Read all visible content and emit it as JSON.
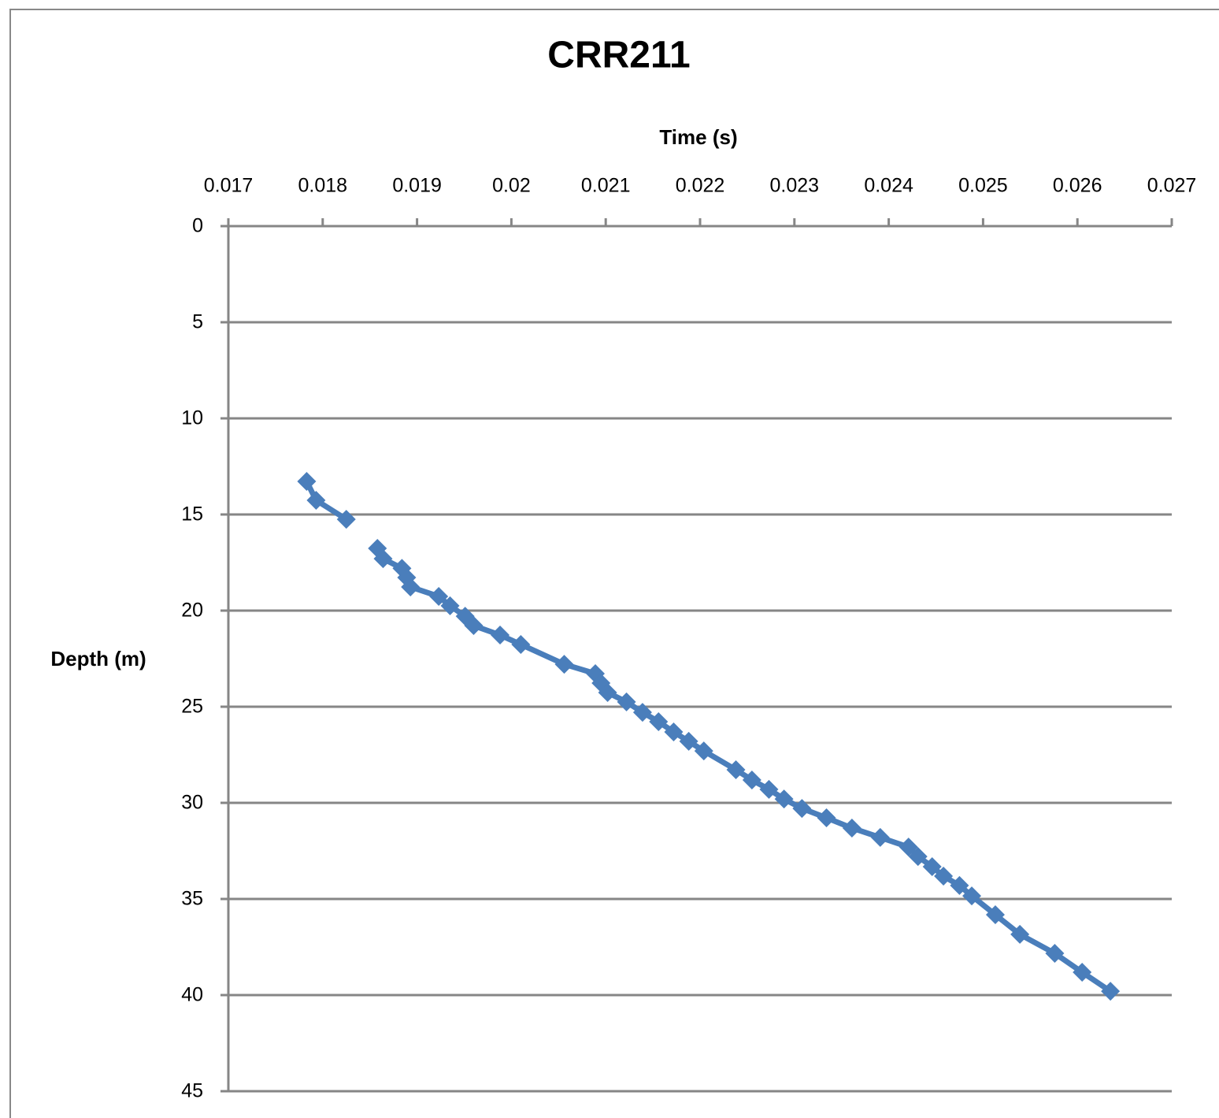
{
  "chart_data": {
    "type": "line",
    "title": "CRR211",
    "x_label": "Time (s)",
    "y_label": "Depth (m)",
    "x_axis_position": "top",
    "y_reversed": true,
    "grid": true,
    "xlim": [
      0.017,
      0.027
    ],
    "xticks": [
      0.017,
      0.018,
      0.019,
      0.02,
      0.021,
      0.022,
      0.023,
      0.024,
      0.025,
      0.026,
      0.027
    ],
    "ylim": [
      0,
      45
    ],
    "yticks": [
      0,
      5,
      10,
      15,
      20,
      25,
      30,
      35,
      40,
      45
    ],
    "series": [
      {
        "name": "CRR211",
        "color": "#4a7ebb",
        "x": [
          0.01783,
          0.01793,
          0.01825,
          null,
          0.01858,
          0.01864,
          0.01884,
          0.01889,
          0.01893,
          0.01923,
          0.01935,
          0.01951,
          0.0196,
          0.01988,
          0.0201,
          0.02056,
          0.02089,
          0.02095,
          0.02102,
          0.02122,
          0.02139,
          0.02156,
          0.02172,
          0.02188,
          0.02204,
          0.02238,
          0.02255,
          0.02273,
          0.02289,
          0.02308,
          0.02334,
          0.02361,
          0.02391,
          0.02421,
          0.02431,
          0.02446,
          0.02458,
          0.02475,
          0.02488,
          0.02513,
          0.02539,
          0.02576,
          0.02605,
          0.02635
        ],
        "values": [
          13.28,
          14.26,
          15.25,
          null,
          16.76,
          17.3,
          17.8,
          18.28,
          18.77,
          19.26,
          19.75,
          20.29,
          20.78,
          21.27,
          21.76,
          22.79,
          23.28,
          23.77,
          24.26,
          24.75,
          25.29,
          25.78,
          26.31,
          26.8,
          27.3,
          28.28,
          28.81,
          29.3,
          29.8,
          30.29,
          30.78,
          31.31,
          31.8,
          32.3,
          32.79,
          33.32,
          33.81,
          34.3,
          34.84,
          35.82,
          36.84,
          37.83,
          38.81,
          39.8
        ]
      }
    ]
  }
}
